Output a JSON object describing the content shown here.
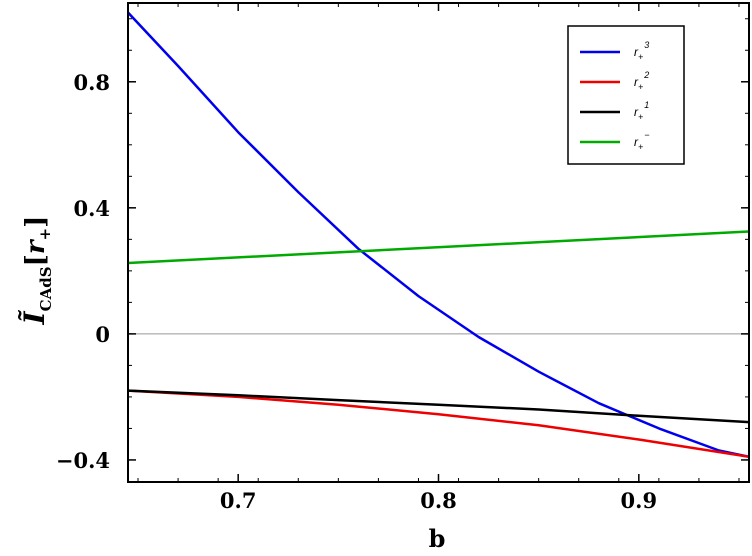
{
  "chart_data": {
    "type": "line",
    "xlabel": "b",
    "ylabel": {
      "base": "Ĩ",
      "sub": "CAdS",
      "bracket_open": "[",
      "arg": "r",
      "arg_sub": "+",
      "bracket_close": "]"
    },
    "xlim": [
      0.645,
      0.955
    ],
    "ylim": [
      -0.47,
      1.05
    ],
    "x_ticks": [
      {
        "value": 0.7,
        "label": "0.7"
      },
      {
        "value": 0.8,
        "label": "0.8"
      },
      {
        "value": 0.9,
        "label": "0.9"
      }
    ],
    "y_ticks": [
      {
        "value": 0.8,
        "label": "0.8"
      },
      {
        "value": 0.4,
        "label": "0.4"
      },
      {
        "value": 0.0,
        "label": "0"
      },
      {
        "value": -0.4,
        "label": "−0.4"
      }
    ],
    "zero_line": true,
    "grid": false,
    "legend_position": "top-right",
    "series": [
      {
        "name": "r+3",
        "legend_main": "r",
        "legend_sub": "+",
        "legend_sup": "3",
        "color": "#0000ee",
        "x": [
          0.645,
          0.67,
          0.7,
          0.73,
          0.76,
          0.79,
          0.82,
          0.85,
          0.88,
          0.91,
          0.94,
          0.955
        ],
        "y": [
          1.02,
          0.85,
          0.64,
          0.45,
          0.27,
          0.12,
          -0.01,
          -0.12,
          -0.22,
          -0.3,
          -0.37,
          -0.39
        ]
      },
      {
        "name": "r+2",
        "legend_main": "r",
        "legend_sub": "+",
        "legend_sup": "2",
        "color": "#ee0000",
        "x": [
          0.645,
          0.7,
          0.75,
          0.8,
          0.85,
          0.9,
          0.955
        ],
        "y": [
          -0.18,
          -0.2,
          -0.225,
          -0.255,
          -0.29,
          -0.335,
          -0.39
        ]
      },
      {
        "name": "r+1",
        "legend_main": "r",
        "legend_sub": "+",
        "legend_sup": "1",
        "color": "#000000",
        "x": [
          0.645,
          0.7,
          0.75,
          0.8,
          0.85,
          0.9,
          0.955
        ],
        "y": [
          -0.18,
          -0.195,
          -0.21,
          -0.225,
          -0.24,
          -0.26,
          -0.28
        ]
      },
      {
        "name": "r+-",
        "legend_main": "r",
        "legend_sub": "+",
        "legend_sup": "−",
        "color": "#00aa00",
        "x": [
          0.645,
          0.955
        ],
        "y": [
          0.225,
          0.325
        ]
      }
    ]
  }
}
